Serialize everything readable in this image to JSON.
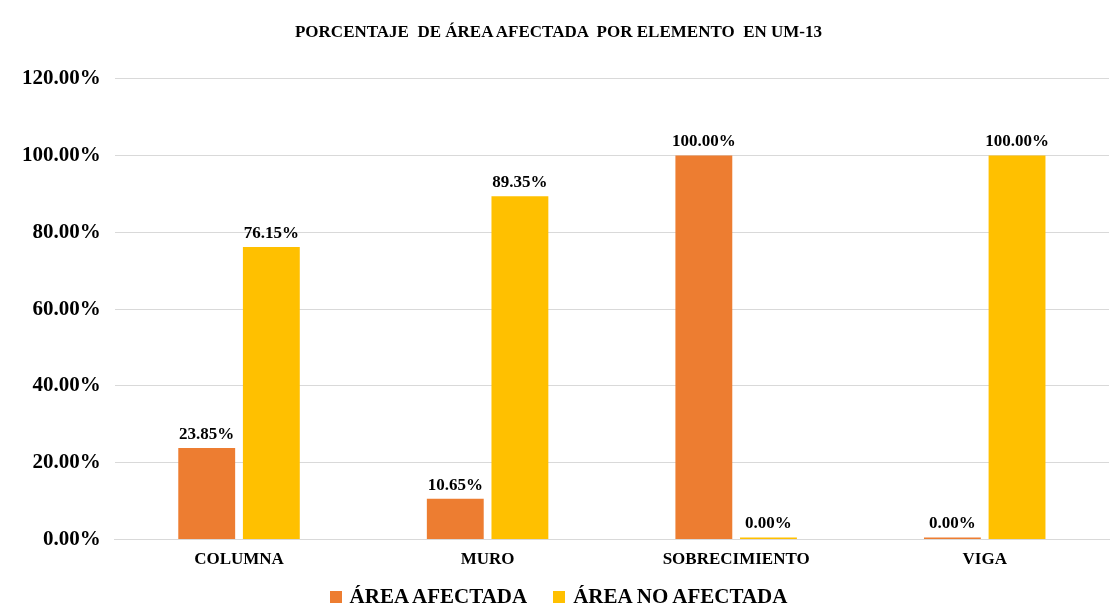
{
  "chart_data": {
    "type": "bar",
    "title": "PORCENTAJE  DE ÁREA AFECTADA  POR ELEMENTO  EN UM-13",
    "categories": [
      "COLUMNA",
      "MURO",
      "SOBRECIMIENTO",
      "VIGA"
    ],
    "series": [
      {
        "name": "ÁREA AFECTADA",
        "color": "#ed7d31",
        "values": [
          23.85,
          10.65,
          100,
          0
        ],
        "value_labels": [
          "23.85%",
          "10.65%",
          "100.00%",
          "0.00%"
        ]
      },
      {
        "name": "ÁREA NO AFECTADA",
        "color": "#ffc000",
        "values": [
          76.15,
          89.35,
          0,
          100
        ],
        "value_labels": [
          "76.15%",
          "89.35%",
          "0.00%",
          "100.00%"
        ]
      }
    ],
    "ylim": [
      0,
      120
    ],
    "yticks": [
      {
        "value": 0,
        "label": "0.00%"
      },
      {
        "value": 20,
        "label": "20.00%"
      },
      {
        "value": 40,
        "label": "40.00%"
      },
      {
        "value": 60,
        "label": "60.00%"
      },
      {
        "value": 80,
        "label": "80.00%"
      },
      {
        "value": 100,
        "label": "100.00%"
      },
      {
        "value": 120,
        "label": "120.00%"
      }
    ],
    "grid": "y",
    "legend": "bottom"
  }
}
